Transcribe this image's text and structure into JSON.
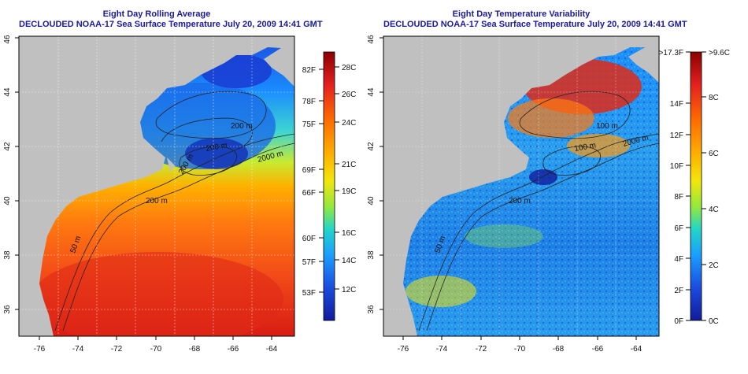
{
  "panels": [
    {
      "title": "Eight Day Rolling Average",
      "subtitle": "DECLOUDED NOAA-17 Sea Surface Temperature July 20, 2009 14:41 GMT",
      "x_ticks": [
        "-76",
        "-74",
        "-72",
        "-70",
        "-68",
        "-66",
        "-64"
      ],
      "y_ticks": [
        "36",
        "38",
        "40",
        "42",
        "44",
        "46"
      ],
      "contour_labels": [
        "200 m",
        "200 m",
        "2000 m",
        "200 m",
        "200 m",
        "50 m"
      ],
      "colorbar": {
        "left_labels": [
          "82F",
          "78F",
          "75F",
          "69F",
          "66F",
          "60F",
          "57F",
          "53F"
        ],
        "right_labels": [
          "28C",
          "26C",
          "24C",
          "21C",
          "19C",
          "16C",
          "14C",
          "12C"
        ],
        "colors": [
          "#8b0000",
          "#e41f1f",
          "#ff6a00",
          "#ffb000",
          "#f2e60a",
          "#8fe840",
          "#22d6c8",
          "#1a9cff",
          "#1a4bdf",
          "#121b9c"
        ]
      }
    },
    {
      "title": "Eight Day Temperature Variability",
      "subtitle": "DECLOUDED NOAA-17 Sea Surface Temperature July 20, 2009 14:41 GMT",
      "x_ticks": [
        "-76",
        "-74",
        "-72",
        "-70",
        "-68",
        "-66",
        "-64"
      ],
      "y_ticks": [
        "36",
        "38",
        "40",
        "42",
        "44",
        "46"
      ],
      "contour_labels": [
        "100 m",
        "100 m",
        "2000 m",
        "200 m",
        "50 m"
      ],
      "colorbar": {
        "left_labels": [
          ">17.3F",
          "14F",
          "12F",
          "10F",
          "8F",
          "6F",
          "4F",
          "2F",
          "0F"
        ],
        "right_labels": [
          ">9.6C",
          "8C",
          "6C",
          "4C",
          "2C",
          "0C"
        ],
        "colors": [
          "#8b0000",
          "#e41f1f",
          "#ff6a00",
          "#ffb000",
          "#f2e60a",
          "#8fe840",
          "#22d6c8",
          "#1a9cff",
          "#1a4bdf",
          "#121b9c"
        ]
      }
    }
  ],
  "colors": {
    "land": "#c0c0c0",
    "title": "#1a1a9e",
    "contour": "#222222",
    "grid": "#ffffff"
  }
}
